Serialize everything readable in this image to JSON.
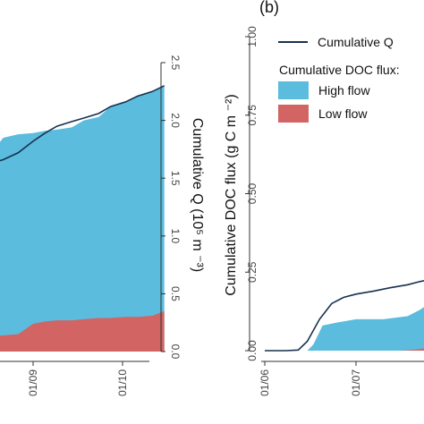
{
  "colors": {
    "high_flow": "#5bbcdd",
    "low_flow": "#d26464",
    "cumulative_q": "#16314f",
    "axis": "#333333"
  },
  "chart_data": [
    {
      "type": "area",
      "panel": "",
      "x_ticks": [
        "01/09",
        "01/10"
      ],
      "y_right_ticks": [
        "0.0",
        "0.5",
        "1.0",
        "1.5",
        "2.0",
        "2.5"
      ],
      "ylabel_right": "Cumulative Q (10⁵ m ⁻³)",
      "ylim_right": [
        0,
        2.5
      ],
      "series": [
        {
          "name": "Cumulative Q",
          "type": "line",
          "x": [
            "08-13",
            "08-18",
            "08-22",
            "08-27",
            "09-01",
            "09-05",
            "09-09",
            "09-14",
            "09-18",
            "09-23",
            "09-27",
            "10-02",
            "10-06",
            "10-11",
            "10-15"
          ],
          "values": [
            1.6,
            1.63,
            1.66,
            1.72,
            1.82,
            1.89,
            1.95,
            1.99,
            2.02,
            2.06,
            2.12,
            2.16,
            2.21,
            2.25,
            2.3
          ]
        },
        {
          "name": "High flow",
          "type": "area",
          "x": [
            "08-13",
            "08-18",
            "08-22",
            "08-27",
            "09-01",
            "09-05",
            "09-09",
            "09-14",
            "09-18",
            "09-23",
            "09-27",
            "10-02",
            "10-06",
            "10-11",
            "10-15"
          ],
          "values": [
            1.65,
            1.72,
            1.85,
            1.88,
            1.89,
            1.91,
            1.92,
            1.94,
            2.0,
            2.03,
            2.12,
            2.16,
            2.21,
            2.25,
            2.3
          ]
        },
        {
          "name": "Low flow",
          "type": "area",
          "x": [
            "08-13",
            "08-18",
            "08-22",
            "08-27",
            "09-01",
            "09-05",
            "09-09",
            "09-14",
            "09-18",
            "09-23",
            "09-27",
            "10-02",
            "10-06",
            "10-11",
            "10-15"
          ],
          "values": [
            0.12,
            0.13,
            0.14,
            0.15,
            0.24,
            0.26,
            0.27,
            0.27,
            0.28,
            0.29,
            0.29,
            0.3,
            0.3,
            0.31,
            0.35
          ]
        }
      ]
    },
    {
      "type": "area",
      "panel": "(b)",
      "x_ticks": [
        "01/06",
        "01/07"
      ],
      "y_left_ticks": [
        "0.00",
        "0.25",
        "0.50",
        "0.75",
        "1.00"
      ],
      "ylabel_left": "Cumulative DOC flux (g C m ⁻²)",
      "ylim_left": [
        0,
        1.0
      ],
      "legend": {
        "line_label": "Cumulative Q",
        "title": "Cumulative DOC flux:",
        "entries": [
          "High flow",
          "Low flow"
        ],
        "placement": "top-right"
      },
      "series": [
        {
          "name": "Cumulative Q",
          "type": "line",
          "x": [
            "06-01",
            "06-08",
            "06-12",
            "06-15",
            "06-19",
            "06-23",
            "06-27",
            "07-01",
            "07-07",
            "07-12",
            "07-18",
            "07-22",
            "07-27",
            "08-02"
          ],
          "values": [
            0.0,
            0.0,
            0.002,
            0.03,
            0.1,
            0.15,
            0.17,
            0.18,
            0.19,
            0.2,
            0.21,
            0.22,
            0.23,
            0.24
          ]
        },
        {
          "name": "High flow",
          "type": "area",
          "x": [
            "06-01",
            "06-15",
            "06-17",
            "06-20",
            "06-25",
            "07-01",
            "07-10",
            "07-18",
            "07-22",
            "07-25",
            "08-02"
          ],
          "values": [
            0.0,
            0.0,
            0.02,
            0.08,
            0.09,
            0.1,
            0.1,
            0.11,
            0.13,
            0.15,
            0.15
          ]
        },
        {
          "name": "Low flow",
          "type": "area",
          "x": [
            "06-01",
            "07-15",
            "07-20",
            "07-24",
            "07-28",
            "08-02"
          ],
          "values": [
            0.0,
            0.0,
            0.003,
            0.008,
            0.012,
            0.015
          ]
        }
      ]
    }
  ]
}
